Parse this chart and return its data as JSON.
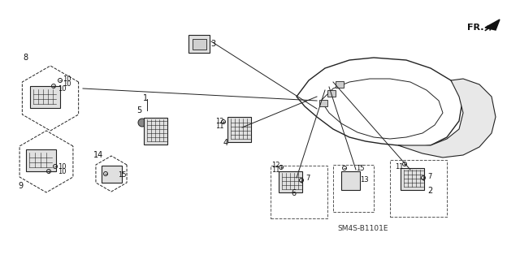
{
  "title": "",
  "background_color": "#ffffff",
  "diagram_code": "SM4S-B1101E",
  "fr_label": "FR.",
  "parts": {
    "main_assembly_label": "3",
    "part1": "1",
    "part2": "2",
    "part3": "3",
    "part4": "4",
    "part5": "5",
    "part6": "6",
    "part7": "7",
    "part8": "8",
    "part9": "9",
    "part10": "10",
    "part11": "11",
    "part12": "12",
    "part13": "13",
    "part14": "14",
    "part15": "15"
  },
  "line_color": "#222222",
  "text_color": "#111111",
  "dash_color": "#555555",
  "font_size_label": 7,
  "font_size_code": 6.5
}
